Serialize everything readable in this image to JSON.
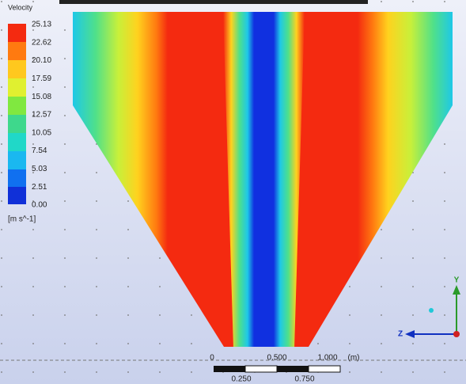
{
  "legend": {
    "title": "Velocity",
    "labels": [
      "25.13",
      "22.62",
      "20.10",
      "17.59",
      "15.08",
      "12.57",
      "10.05",
      "7.54",
      "5.03",
      "2.51",
      "0.00"
    ],
    "unit": "[m s^-1]"
  },
  "scale_bar": {
    "top_labels": [
      "0",
      "0.500",
      "1.000",
      "(m)"
    ],
    "bottom_labels": [
      "0.250",
      "0.750"
    ]
  },
  "axes": {
    "y": "Y",
    "z": "Z"
  }
}
